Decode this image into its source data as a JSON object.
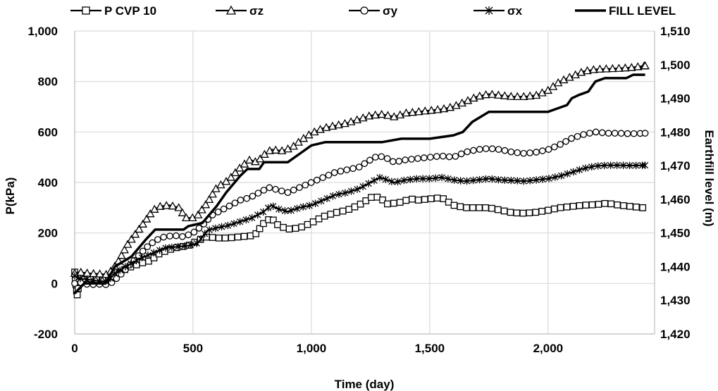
{
  "chart_data": {
    "type": "line",
    "title": "",
    "xlabel": "Time (day)",
    "ylabel": "P(kPa)",
    "y2label": "Earthfill level (m)",
    "xlim": [
      0,
      2450
    ],
    "ylim": [
      -200,
      1000
    ],
    "y2lim": [
      1420,
      1510
    ],
    "grid": true,
    "legend_position": "top",
    "x_ticks": [
      0,
      500,
      1000,
      1500,
      2000
    ],
    "x_tick_labels": [
      "0",
      "500",
      "1,000",
      "1,500",
      "2,000"
    ],
    "y_ticks": [
      -200,
      0,
      200,
      400,
      600,
      800,
      1000
    ],
    "y_tick_labels": [
      "-200",
      "0",
      "200",
      "400",
      "600",
      "800",
      "1,000"
    ],
    "y2_ticks": [
      1420,
      1430,
      1440,
      1450,
      1460,
      1470,
      1480,
      1490,
      1500,
      1510
    ],
    "y2_tick_labels": [
      "1,420",
      "1,430",
      "1,440",
      "1,450",
      "1,460",
      "1,470",
      "1,480",
      "1,490",
      "1,500",
      "1,510"
    ],
    "series": [
      {
        "name": "P CVP 10",
        "marker": "square",
        "axis": "left",
        "points": [
          [
            0,
            45
          ],
          [
            10,
            -50
          ],
          [
            20,
            10
          ],
          [
            60,
            20
          ],
          [
            100,
            15
          ],
          [
            140,
            10
          ],
          [
            170,
            30
          ],
          [
            220,
            60
          ],
          [
            280,
            80
          ],
          [
            320,
            90
          ],
          [
            360,
            120
          ],
          [
            420,
            140
          ],
          [
            480,
            150
          ],
          [
            520,
            170
          ],
          [
            560,
            185
          ],
          [
            600,
            180
          ],
          [
            650,
            180
          ],
          [
            700,
            185
          ],
          [
            760,
            190
          ],
          [
            800,
            240
          ],
          [
            830,
            260
          ],
          [
            860,
            230
          ],
          [
            900,
            215
          ],
          [
            950,
            220
          ],
          [
            1000,
            240
          ],
          [
            1050,
            265
          ],
          [
            1100,
            280
          ],
          [
            1150,
            290
          ],
          [
            1200,
            310
          ],
          [
            1260,
            345
          ],
          [
            1290,
            340
          ],
          [
            1320,
            315
          ],
          [
            1370,
            320
          ],
          [
            1420,
            335
          ],
          [
            1450,
            330
          ],
          [
            1500,
            335
          ],
          [
            1550,
            340
          ],
          [
            1600,
            310
          ],
          [
            1650,
            300
          ],
          [
            1700,
            300
          ],
          [
            1750,
            300
          ],
          [
            1800,
            290
          ],
          [
            1850,
            280
          ],
          [
            1900,
            278
          ],
          [
            1950,
            282
          ],
          [
            2000,
            290
          ],
          [
            2050,
            300
          ],
          [
            2100,
            305
          ],
          [
            2150,
            310
          ],
          [
            2200,
            312
          ],
          [
            2250,
            318
          ],
          [
            2300,
            310
          ],
          [
            2350,
            305
          ],
          [
            2400,
            300
          ]
        ]
      },
      {
        "name": "σz",
        "marker": "triangle",
        "axis": "left",
        "points": [
          [
            0,
            40
          ],
          [
            20,
            45
          ],
          [
            60,
            40
          ],
          [
            100,
            38
          ],
          [
            140,
            35
          ],
          [
            180,
            80
          ],
          [
            220,
            150
          ],
          [
            260,
            200
          ],
          [
            300,
            250
          ],
          [
            330,
            290
          ],
          [
            360,
            305
          ],
          [
            400,
            310
          ],
          [
            440,
            300
          ],
          [
            470,
            260
          ],
          [
            500,
            260
          ],
          [
            520,
            270
          ],
          [
            560,
            320
          ],
          [
            600,
            380
          ],
          [
            650,
            410
          ],
          [
            700,
            460
          ],
          [
            740,
            490
          ],
          [
            770,
            480
          ],
          [
            800,
            510
          ],
          [
            830,
            530
          ],
          [
            880,
            525
          ],
          [
            920,
            540
          ],
          [
            960,
            570
          ],
          [
            1000,
            595
          ],
          [
            1050,
            615
          ],
          [
            1100,
            625
          ],
          [
            1150,
            635
          ],
          [
            1200,
            650
          ],
          [
            1250,
            665
          ],
          [
            1300,
            670
          ],
          [
            1350,
            660
          ],
          [
            1400,
            675
          ],
          [
            1450,
            680
          ],
          [
            1500,
            685
          ],
          [
            1550,
            690
          ],
          [
            1600,
            700
          ],
          [
            1650,
            720
          ],
          [
            1700,
            740
          ],
          [
            1750,
            750
          ],
          [
            1800,
            745
          ],
          [
            1850,
            740
          ],
          [
            1900,
            740
          ],
          [
            1950,
            745
          ],
          [
            2000,
            765
          ],
          [
            2050,
            800
          ],
          [
            2100,
            820
          ],
          [
            2150,
            840
          ],
          [
            2200,
            848
          ],
          [
            2250,
            850
          ],
          [
            2300,
            852
          ],
          [
            2350,
            855
          ],
          [
            2410,
            862
          ]
        ]
      },
      {
        "name": "σy",
        "marker": "circle",
        "axis": "left",
        "points": [
          [
            0,
            0
          ],
          [
            20,
            5
          ],
          [
            60,
            -5
          ],
          [
            100,
            -3
          ],
          [
            140,
            -5
          ],
          [
            160,
            5
          ],
          [
            200,
            40
          ],
          [
            250,
            90
          ],
          [
            300,
            140
          ],
          [
            340,
            170
          ],
          [
            380,
            185
          ],
          [
            420,
            190
          ],
          [
            460,
            185
          ],
          [
            500,
            200
          ],
          [
            540,
            230
          ],
          [
            580,
            270
          ],
          [
            620,
            290
          ],
          [
            660,
            310
          ],
          [
            700,
            330
          ],
          [
            740,
            340
          ],
          [
            780,
            360
          ],
          [
            820,
            380
          ],
          [
            860,
            370
          ],
          [
            900,
            360
          ],
          [
            950,
            380
          ],
          [
            1000,
            400
          ],
          [
            1050,
            420
          ],
          [
            1100,
            440
          ],
          [
            1150,
            450
          ],
          [
            1200,
            460
          ],
          [
            1250,
            490
          ],
          [
            1280,
            505
          ],
          [
            1310,
            500
          ],
          [
            1350,
            480
          ],
          [
            1400,
            490
          ],
          [
            1450,
            495
          ],
          [
            1500,
            500
          ],
          [
            1550,
            505
          ],
          [
            1600,
            500
          ],
          [
            1650,
            520
          ],
          [
            1700,
            530
          ],
          [
            1750,
            535
          ],
          [
            1800,
            530
          ],
          [
            1850,
            520
          ],
          [
            1900,
            515
          ],
          [
            1950,
            520
          ],
          [
            2000,
            530
          ],
          [
            2050,
            550
          ],
          [
            2100,
            575
          ],
          [
            2150,
            590
          ],
          [
            2200,
            600
          ],
          [
            2250,
            595
          ],
          [
            2300,
            595
          ],
          [
            2350,
            593
          ],
          [
            2410,
            595
          ]
        ]
      },
      {
        "name": "σx",
        "marker": "star",
        "axis": "left",
        "points": [
          [
            0,
            30
          ],
          [
            20,
            20
          ],
          [
            60,
            15
          ],
          [
            100,
            10
          ],
          [
            140,
            8
          ],
          [
            170,
            40
          ],
          [
            220,
            70
          ],
          [
            280,
            100
          ],
          [
            330,
            120
          ],
          [
            380,
            140
          ],
          [
            430,
            145
          ],
          [
            480,
            150
          ],
          [
            520,
            160
          ],
          [
            560,
            210
          ],
          [
            600,
            220
          ],
          [
            650,
            230
          ],
          [
            700,
            245
          ],
          [
            750,
            260
          ],
          [
            800,
            285
          ],
          [
            830,
            310
          ],
          [
            860,
            295
          ],
          [
            900,
            285
          ],
          [
            950,
            300
          ],
          [
            1000,
            310
          ],
          [
            1050,
            330
          ],
          [
            1100,
            350
          ],
          [
            1150,
            360
          ],
          [
            1200,
            375
          ],
          [
            1250,
            400
          ],
          [
            1290,
            420
          ],
          [
            1320,
            410
          ],
          [
            1350,
            400
          ],
          [
            1400,
            410
          ],
          [
            1450,
            415
          ],
          [
            1500,
            415
          ],
          [
            1550,
            420
          ],
          [
            1600,
            410
          ],
          [
            1650,
            405
          ],
          [
            1700,
            410
          ],
          [
            1750,
            415
          ],
          [
            1800,
            410
          ],
          [
            1850,
            408
          ],
          [
            1900,
            405
          ],
          [
            1950,
            410
          ],
          [
            2000,
            415
          ],
          [
            2050,
            425
          ],
          [
            2100,
            440
          ],
          [
            2150,
            455
          ],
          [
            2200,
            465
          ],
          [
            2250,
            468
          ],
          [
            2300,
            468
          ],
          [
            2350,
            467
          ],
          [
            2410,
            468
          ]
        ]
      },
      {
        "name": "FILL LEVEL",
        "marker": "none",
        "axis": "right",
        "points": [
          [
            0,
            1432
          ],
          [
            40,
            1435
          ],
          [
            130,
            1435
          ],
          [
            170,
            1440
          ],
          [
            240,
            1443
          ],
          [
            300,
            1448
          ],
          [
            340,
            1451
          ],
          [
            400,
            1451
          ],
          [
            460,
            1451
          ],
          [
            480,
            1452
          ],
          [
            540,
            1453
          ],
          [
            600,
            1458
          ],
          [
            640,
            1462
          ],
          [
            700,
            1467
          ],
          [
            730,
            1469
          ],
          [
            780,
            1469
          ],
          [
            800,
            1471
          ],
          [
            900,
            1471
          ],
          [
            960,
            1474
          ],
          [
            1000,
            1476
          ],
          [
            1060,
            1477
          ],
          [
            1200,
            1477
          ],
          [
            1300,
            1477
          ],
          [
            1380,
            1478
          ],
          [
            1500,
            1478
          ],
          [
            1600,
            1479
          ],
          [
            1640,
            1480
          ],
          [
            1680,
            1483
          ],
          [
            1750,
            1486
          ],
          [
            1900,
            1486
          ],
          [
            2000,
            1486
          ],
          [
            2040,
            1487
          ],
          [
            2080,
            1488
          ],
          [
            2100,
            1490
          ],
          [
            2130,
            1491
          ],
          [
            2170,
            1492
          ],
          [
            2200,
            1495
          ],
          [
            2240,
            1496
          ],
          [
            2330,
            1496
          ],
          [
            2360,
            1497
          ],
          [
            2410,
            1497
          ]
        ]
      }
    ]
  }
}
